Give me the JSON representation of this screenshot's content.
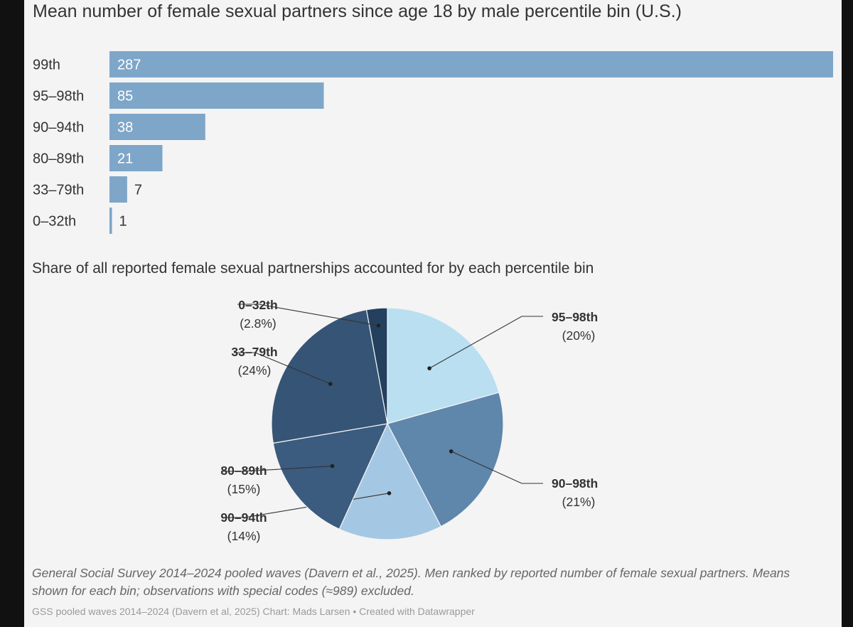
{
  "colors": {
    "background": "#f4f4f4",
    "bar": "#7ea6c9",
    "text": "#333333",
    "note": "#666666",
    "credit": "#9a9a9a",
    "frame": "#111111"
  },
  "chart_data": [
    {
      "type": "bar",
      "orientation": "horizontal",
      "title": "Mean number of female sexual partners since age 18 by male percentile bin (U.S.)",
      "categories": [
        "99th",
        "95–98th",
        "90–94th",
        "80–89th",
        "33–79th",
        "0–32th"
      ],
      "values": [
        287,
        85,
        38,
        21,
        7,
        1
      ],
      "data_labels": [
        "287",
        "85",
        "38",
        "21",
        "7",
        "1"
      ],
      "xlim": [
        0,
        287
      ],
      "grid": false,
      "legend": "none"
    },
    {
      "type": "pie",
      "title": "Share of all reported female sexual partnerships accounted for by each percentile bin",
      "slices": [
        {
          "label": "95–98th",
          "share_label": "(20%)",
          "value": 20,
          "color": "#b9dff1"
        },
        {
          "label": "90–98th",
          "share_label": "(21%)",
          "value": 21,
          "color": "#5f86ab"
        },
        {
          "label": "90–94th",
          "share_label": "(14%)",
          "value": 14,
          "color": "#a4c8e4"
        },
        {
          "label": "80–89th",
          "share_label": "(15%)",
          "value": 15,
          "color": "#3b5b7f"
        },
        {
          "label": "33–79th",
          "share_label": "(24%)",
          "value": 24,
          "color": "#365475"
        },
        {
          "label": "0–32th",
          "share_label": "(2.8%)",
          "value": 2.8,
          "color": "#24405f"
        }
      ],
      "legend": "callout labels"
    }
  ],
  "note": "General Social Survey 2014–2024 pooled waves (Davern et al., 2025). Men ranked by reported number of female sexual partners. Means shown for each bin; observations with special codes (≈989) excluded.",
  "credit": "GSS pooled waves 2014–2024 (Davern et al, 2025) Chart: Mads Larsen • Created with Datawrapper"
}
